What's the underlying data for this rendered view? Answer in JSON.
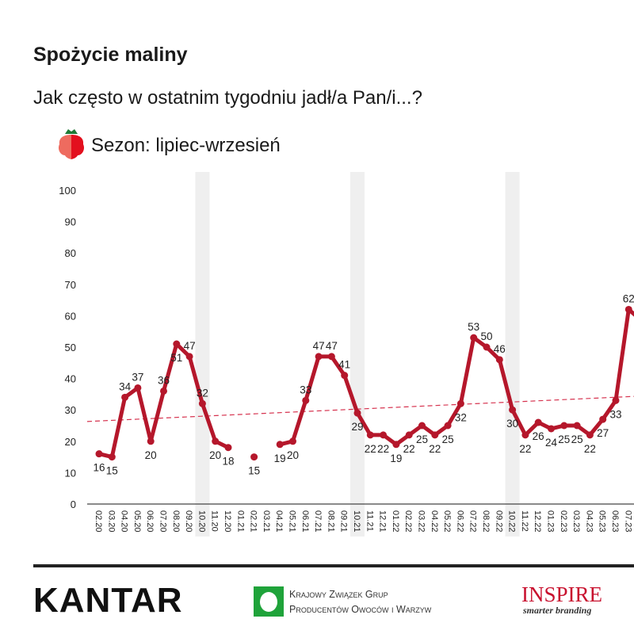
{
  "header": {
    "title": "Spożycie maliny",
    "subtitle": "Jak często w ostatnim tygodniu jadł/a Pan/i...?",
    "season": "Sezon: lipiec-wrzesień",
    "season_icon": "strawberry-raspberry-icon"
  },
  "footer": {
    "kantar": "KANTAR",
    "kzgp_line1": "Krajowy Związek Grup",
    "kzgp_line2": "Producentów Owoców i Warzyw",
    "inspire": "INSPIRE",
    "inspire_sub": "smarter branding"
  },
  "chart_data": {
    "type": "line",
    "title": "",
    "xlabel": "",
    "ylabel": "",
    "ylim": [
      0,
      100
    ],
    "yticks": [
      0,
      10,
      20,
      30,
      40,
      50,
      60,
      70,
      80,
      90,
      100
    ],
    "grid": false,
    "line_color": "#b5172b",
    "trendline": {
      "style": "dashed",
      "color": "#d6334f",
      "start": 26.3,
      "end": 34.3
    },
    "shaded_categories": [
      "10.20",
      "10.21",
      "10.22"
    ],
    "categories": [
      "02.20",
      "03.20",
      "04.20",
      "05.20",
      "06.20",
      "07.20",
      "08.20",
      "09.20",
      "10.20",
      "11.20",
      "12.20",
      "01.21",
      "02.21",
      "03.21",
      "04.21",
      "05.21",
      "06.21",
      "07.21",
      "08.21",
      "09.21",
      "10.21",
      "11.21",
      "12.21",
      "01.22",
      "02.22",
      "03.22",
      "04.22",
      "05.22",
      "06.22",
      "07.22",
      "08.22",
      "09.22",
      "10.22",
      "11.22",
      "12.22",
      "01.23",
      "02.23",
      "03.23",
      "04.23",
      "05.23",
      "06.23",
      "07.23"
    ],
    "values": [
      16,
      15,
      34,
      37,
      20,
      36,
      51,
      47,
      32,
      20,
      18,
      null,
      15,
      null,
      19,
      20,
      33,
      47,
      47,
      41,
      29,
      22,
      22,
      19,
      22,
      25,
      22,
      25,
      32,
      53,
      50,
      46,
      30,
      22,
      26,
      24,
      25,
      25,
      22,
      27,
      33,
      62
    ]
  }
}
